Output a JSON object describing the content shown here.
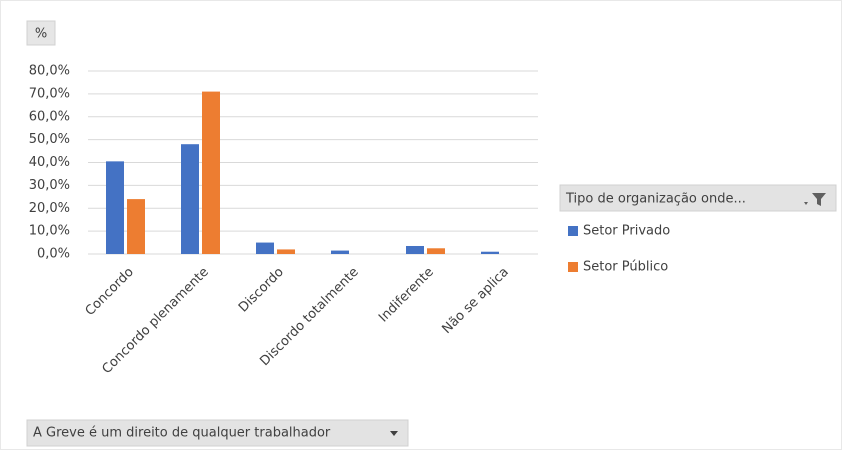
{
  "chart_data": {
    "type": "bar",
    "y_axis_button": "%",
    "categories": [
      "Concordo",
      "Concordo plenamente",
      "Discordo",
      "Discordo totalmente",
      "Indiferente",
      "Não se aplica"
    ],
    "series": [
      {
        "name": "Setor Privado",
        "color": "#4472c4",
        "values": [
          40.5,
          48,
          5,
          1.5,
          3.5,
          1
        ]
      },
      {
        "name": "Setor Público",
        "color": "#ed7d31",
        "values": [
          24,
          71,
          2,
          0,
          2.5,
          0
        ]
      }
    ],
    "ylim": [
      0,
      80
    ],
    "yticks": [
      {
        "value": 0,
        "label": "0,0%"
      },
      {
        "value": 10,
        "label": "10,0%"
      },
      {
        "value": 20,
        "label": "20,0%"
      },
      {
        "value": 30,
        "label": "30,0%"
      },
      {
        "value": 40,
        "label": "40,0%"
      },
      {
        "value": 50,
        "label": "50,0%"
      },
      {
        "value": 60,
        "label": "60,0%"
      },
      {
        "value": 70,
        "label": "70,0%"
      },
      {
        "value": 80,
        "label": "80,0%"
      }
    ],
    "grid": true,
    "legend_title": "Tipo de organização onde...",
    "legend_position": "right",
    "filter_field": "A Greve é um direito de qualquer trabalhador"
  }
}
